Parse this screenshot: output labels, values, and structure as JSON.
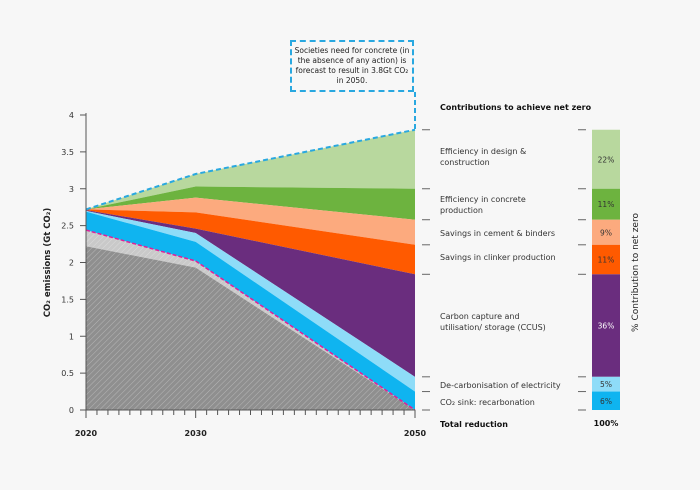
{
  "chart_data": {
    "type": "area",
    "x": [
      2020,
      2030,
      2050
    ],
    "xtick_labels": [
      "2020",
      "2030",
      "2050"
    ],
    "ylabel": "CO₂ emissions (Gt CO₂)",
    "ylim": [
      0,
      4
    ],
    "yticks": [
      "0",
      "0.5",
      "1",
      "1.5",
      "2",
      "2.5",
      "3",
      "3.5",
      "4"
    ],
    "grid": false,
    "annotation": "Societies need for concrete (in the absence of any action) is forecast to result in 3.8Gt CO₂ in 2050.",
    "baseline_no_action": [
      2.72,
      3.2,
      3.8
    ],
    "bands": [
      {
        "name": "Efficiency in design & construction",
        "color": "#b8d89e",
        "top": [
          2.72,
          3.2,
          3.8
        ],
        "bottom": [
          2.72,
          3.03,
          3.0
        ],
        "share": "22%"
      },
      {
        "name": "Efficiency in concrete production",
        "color": "#6db33f",
        "top": [
          2.72,
          3.03,
          3.0
        ],
        "bottom": [
          2.72,
          2.88,
          2.58
        ],
        "share": "11%"
      },
      {
        "name": "Savings in cement & binders",
        "color": "#fcaa7e",
        "top": [
          2.72,
          2.88,
          2.58
        ],
        "bottom": [
          2.72,
          2.68,
          2.24
        ],
        "share": "9%"
      },
      {
        "name": "Savings in clinker production",
        "color": "#ff5a00",
        "top": [
          2.72,
          2.68,
          2.24
        ],
        "bottom": [
          2.71,
          2.46,
          1.84
        ],
        "share": "11%"
      },
      {
        "name": "Carbon capture and utilisation/ storage (CCUS)",
        "color": "#6a2d7e",
        "top": [
          2.71,
          2.46,
          1.84
        ],
        "bottom": [
          2.7,
          2.4,
          0.45
        ],
        "share": "36%"
      },
      {
        "name": "De-carbonisation of electricity",
        "color": "#8edcf8",
        "top": [
          2.7,
          2.4,
          0.45
        ],
        "bottom": [
          2.69,
          2.28,
          0.25
        ],
        "share": "5%"
      },
      {
        "name": "CO₂ sink: recarbonation",
        "color": "#0fb4f0",
        "top": [
          2.69,
          2.28,
          0.25
        ],
        "bottom": [
          2.44,
          2.02,
          0.0
        ],
        "share": "6%"
      }
    ],
    "hatched_bands": [
      {
        "color": "#c9c9c9",
        "top": [
          2.44,
          2.02,
          0.0
        ],
        "bottom": [
          2.22,
          1.93,
          0.0
        ]
      },
      {
        "color": "#8f8f8f",
        "top": [
          2.22,
          1.93,
          0.0
        ],
        "bottom": [
          0,
          0,
          0
        ]
      }
    ],
    "right_panel": {
      "heading": "Contributions to achieve net zero",
      "total_label": "Total reduction",
      "total_value": "100%",
      "axis_label": "% Contribution to net zero"
    }
  }
}
